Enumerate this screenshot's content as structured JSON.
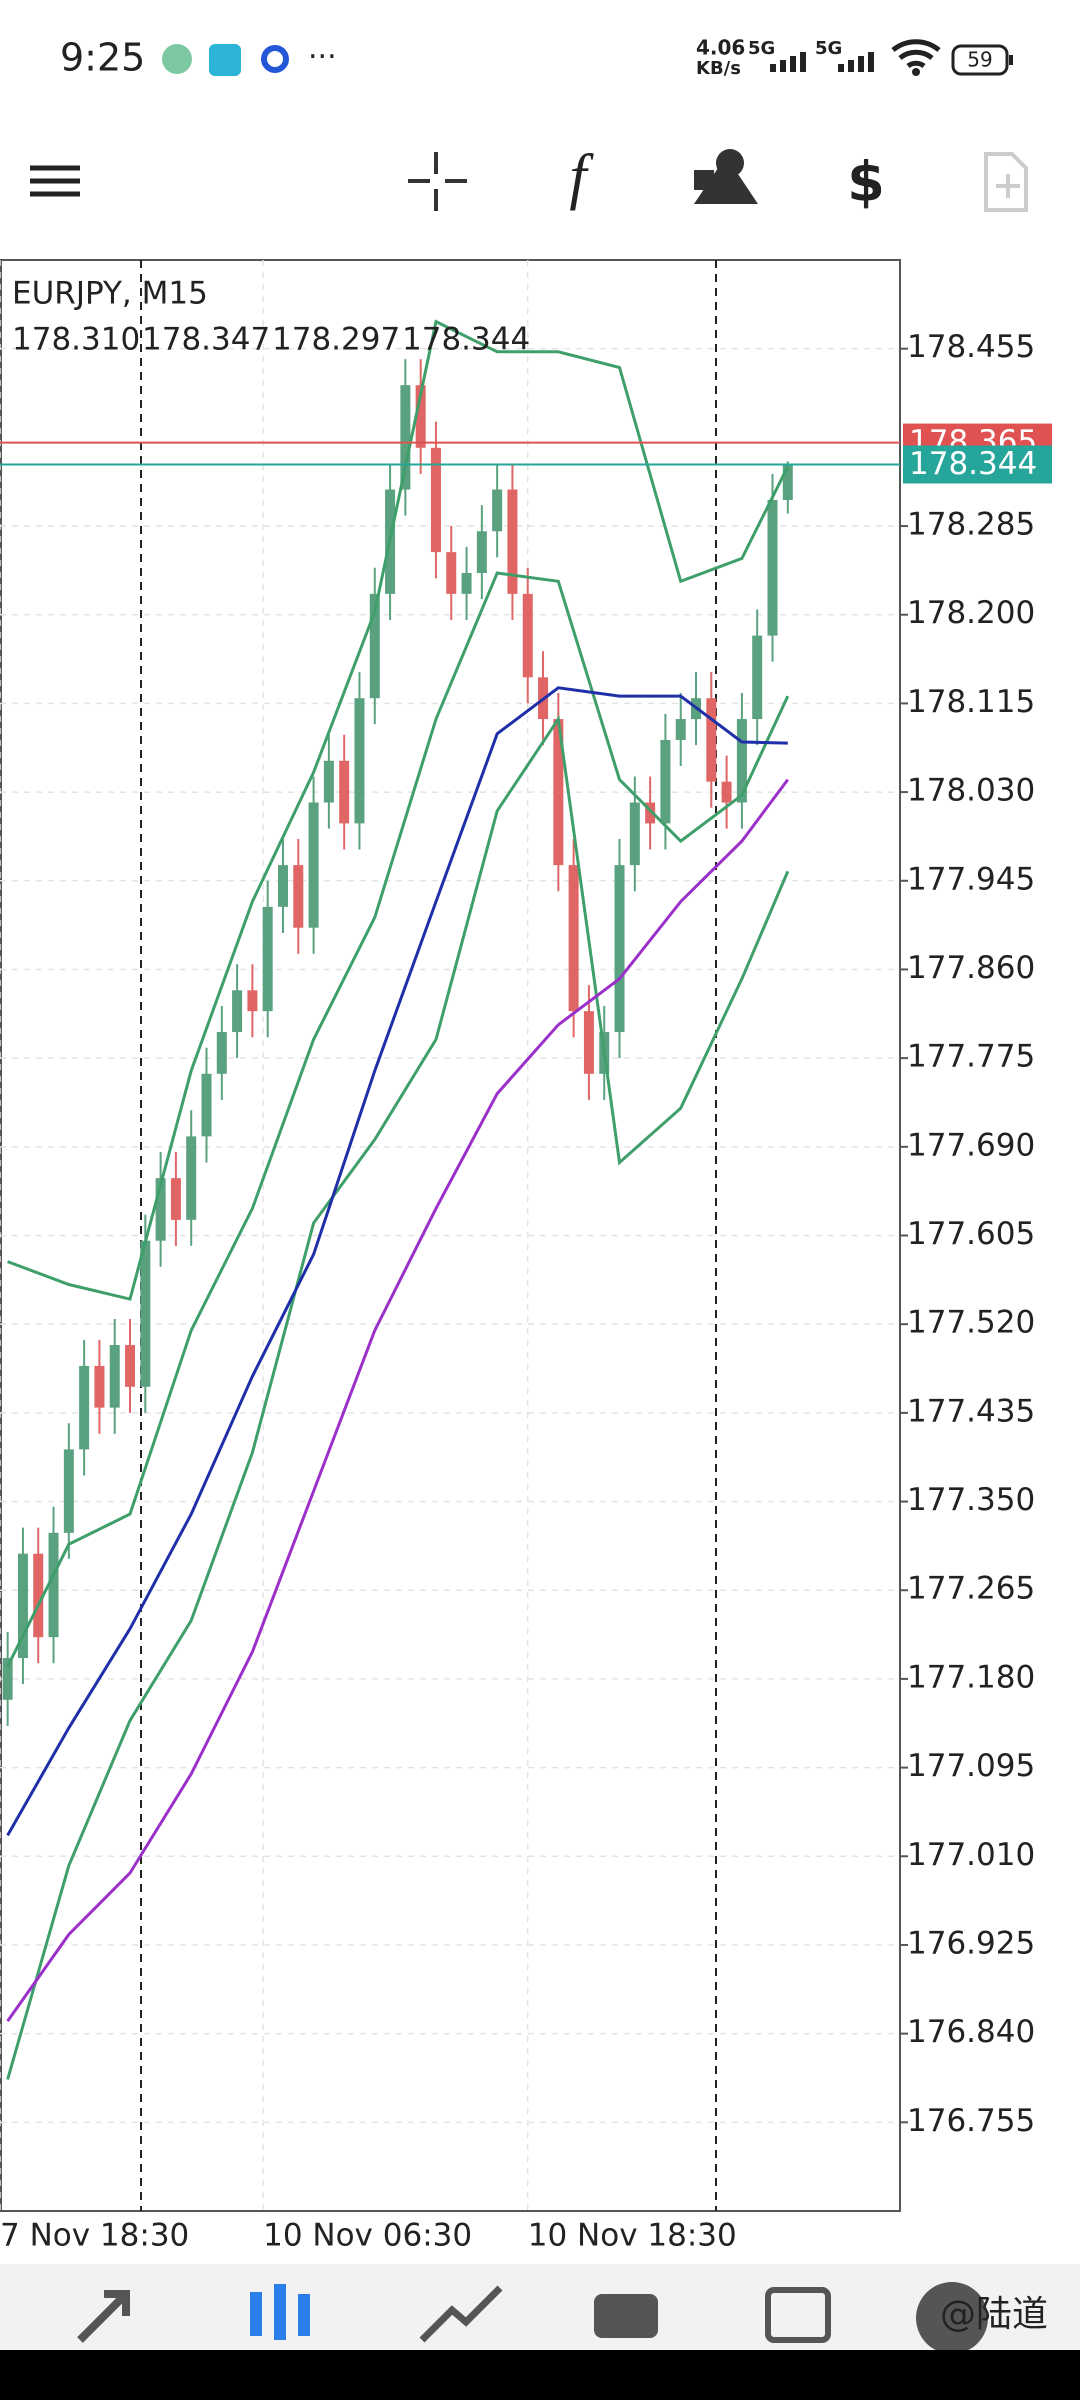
{
  "status_bar": {
    "time": "9:25",
    "speed": "4.06",
    "speed_unit": "KB/s",
    "net1": "5G",
    "net2": "5G",
    "battery": "59"
  },
  "watermark": "@陆道",
  "chart_data": {
    "type": "candlestick",
    "symbol": "EURJPY, M15",
    "ohlc_text": [
      "178.310",
      "178.347",
      "178.297",
      "178.344"
    ],
    "up_color": "#5aa17f",
    "down_color": "#e06666",
    "ylim": [
      176.67,
      178.54
    ],
    "yticks": [
      178.455,
      178.285,
      {
        "value": 178.2,
        "label": "178.200"
      },
      178.115,
      {
        "value": 178.03,
        "label": "178.030"
      },
      177.945,
      {
        "value": 177.86,
        "label": "177.860"
      },
      177.775,
      {
        "value": 177.69,
        "label": "177.690"
      },
      177.605,
      {
        "value": 177.52,
        "label": "177.520"
      },
      177.435,
      {
        "value": 177.35,
        "label": "177.350"
      },
      177.265,
      {
        "value": 177.18,
        "label": "177.180"
      },
      177.095,
      {
        "value": 177.01,
        "label": "177.010"
      },
      176.925,
      {
        "value": 176.84,
        "label": "176.840"
      },
      176.755
    ],
    "xticks": [
      {
        "value": -0.5,
        "label": "7 Nov 18:30"
      },
      {
        "value": 16.7,
        "label": "10 Nov 06:30"
      },
      {
        "value": 34,
        "label": "10 Nov 18:30"
      }
    ],
    "grid": true,
    "open": [
      177.16,
      177.2,
      177.3,
      177.22,
      177.32,
      177.4,
      177.48,
      177.44,
      177.5,
      177.46,
      177.6,
      177.66,
      177.62,
      177.7,
      177.76,
      177.8,
      177.84,
      177.82,
      177.92,
      177.96,
      177.9,
      178.02,
      178.06,
      178.0,
      178.12,
      178.22,
      178.32,
      178.42,
      178.36,
      178.26,
      178.22,
      178.24,
      178.28,
      178.32,
      178.22,
      178.14,
      178.1,
      177.96,
      177.82,
      177.76,
      177.8,
      177.96,
      178.02,
      178.0,
      178.08,
      178.1,
      178.12,
      178.04,
      178.02,
      178.1,
      178.18,
      178.31
    ],
    "high": [
      177.225,
      177.325,
      177.325,
      177.345,
      177.425,
      177.505,
      177.505,
      177.525,
      177.525,
      177.625,
      177.685,
      177.685,
      177.725,
      177.785,
      177.825,
      177.865,
      177.865,
      177.945,
      177.985,
      177.985,
      178.045,
      178.085,
      178.085,
      178.145,
      178.245,
      178.345,
      178.445,
      178.445,
      178.385,
      178.285,
      178.265,
      178.305,
      178.345,
      178.345,
      178.245,
      178.165,
      178.125,
      177.985,
      177.845,
      177.825,
      177.985,
      178.045,
      178.045,
      178.105,
      178.125,
      178.145,
      178.145,
      178.065,
      178.125,
      178.205,
      178.335,
      178.347
    ],
    "low": [
      177.135,
      177.175,
      177.195,
      177.195,
      177.295,
      177.375,
      177.415,
      177.415,
      177.435,
      177.435,
      177.575,
      177.595,
      177.595,
      177.675,
      177.735,
      177.775,
      177.795,
      177.795,
      177.895,
      177.875,
      177.875,
      177.995,
      177.975,
      177.975,
      178.095,
      178.195,
      178.295,
      178.335,
      178.235,
      178.195,
      178.195,
      178.215,
      178.255,
      178.195,
      178.115,
      178.075,
      177.935,
      177.795,
      177.735,
      177.735,
      177.775,
      177.935,
      177.975,
      177.975,
      178.055,
      178.075,
      178.015,
      177.995,
      177.995,
      178.075,
      178.155,
      178.297
    ],
    "close": [
      177.2,
      177.3,
      177.22,
      177.32,
      177.4,
      177.48,
      177.44,
      177.5,
      177.46,
      177.6,
      177.66,
      177.62,
      177.7,
      177.76,
      177.8,
      177.84,
      177.82,
      177.92,
      177.96,
      177.9,
      178.02,
      178.06,
      178.0,
      178.12,
      178.22,
      178.32,
      178.42,
      178.36,
      178.26,
      178.22,
      178.24,
      178.28,
      178.32,
      178.22,
      178.14,
      178.1,
      177.96,
      177.82,
      177.76,
      177.8,
      177.96,
      178.02,
      178.0,
      178.08,
      178.1,
      178.12,
      178.04,
      178.02,
      178.1,
      178.18,
      178.31,
      178.344
    ],
    "line_x": [
      0,
      4,
      8,
      12,
      16,
      20,
      24,
      28,
      32,
      36,
      40,
      44,
      48,
      51
    ],
    "lines": [
      {
        "color": "#3f9f6a",
        "values": [
          177.58,
          177.558,
          177.544,
          177.763,
          177.925,
          178.049,
          178.203,
          178.481,
          178.452,
          178.452,
          178.437,
          178.232,
          178.254,
          178.342
        ]
      },
      {
        "color": "#3f9f6a",
        "values": [
          177.192,
          177.309,
          177.338,
          177.514,
          177.631,
          177.793,
          177.91,
          178.1,
          178.24,
          178.232,
          178.042,
          177.983,
          178.027,
          178.122
        ]
      },
      {
        "color": "#3f9f6a",
        "values": [
          176.796,
          177.001,
          177.14,
          177.236,
          177.397,
          177.617,
          177.697,
          177.793,
          178.012,
          178.1,
          177.675,
          177.727,
          177.851,
          177.954
        ]
      },
      {
        "color": "#1f2fa8",
        "values": [
          177.03,
          177.133,
          177.228,
          177.338,
          177.47,
          177.587,
          177.763,
          177.925,
          178.086,
          178.13,
          178.122,
          178.122,
          178.078,
          178.077
        ]
      },
      {
        "color": "#9b2fc9",
        "values": [
          176.852,
          176.935,
          176.994,
          177.089,
          177.206,
          177.36,
          177.514,
          177.631,
          177.741,
          177.807,
          177.851,
          177.925,
          177.983,
          178.042
        ]
      }
    ],
    "ask": {
      "value": 178.365,
      "label": "178.365",
      "color": "#e05252"
    },
    "bid": {
      "value": 178.344,
      "label": "178.344",
      "color": "#26a69a"
    }
  }
}
